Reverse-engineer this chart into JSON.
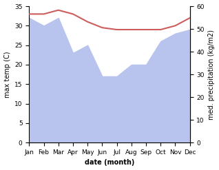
{
  "months": [
    "Jan",
    "Feb",
    "Mar",
    "Apr",
    "May",
    "Jun",
    "Jul",
    "Aug",
    "Sep",
    "Oct",
    "Nov",
    "Dec"
  ],
  "temperature": [
    33.0,
    33.0,
    34.0,
    33.0,
    31.0,
    29.5,
    29.0,
    29.0,
    29.0,
    29.0,
    30.0,
    32.0
  ],
  "precipitation": [
    32.0,
    30.0,
    32.0,
    23.0,
    25.0,
    17.0,
    17.0,
    20.0,
    20.0,
    26.0,
    28.0,
    29.0
  ],
  "temp_color": "#cd5c5c",
  "precip_color": "#b8c4ee",
  "temp_ylim": [
    0,
    35
  ],
  "precip_ylim": [
    0,
    60
  ],
  "temp_yticks": [
    0,
    5,
    10,
    15,
    20,
    25,
    30,
    35
  ],
  "precip_yticks": [
    0,
    10,
    20,
    30,
    40,
    50,
    60
  ],
  "xlabel": "date (month)",
  "ylabel_left": "max temp (C)",
  "ylabel_right": "med. precipitation (kg/m2)",
  "label_fontsize": 7,
  "tick_fontsize": 6.5
}
